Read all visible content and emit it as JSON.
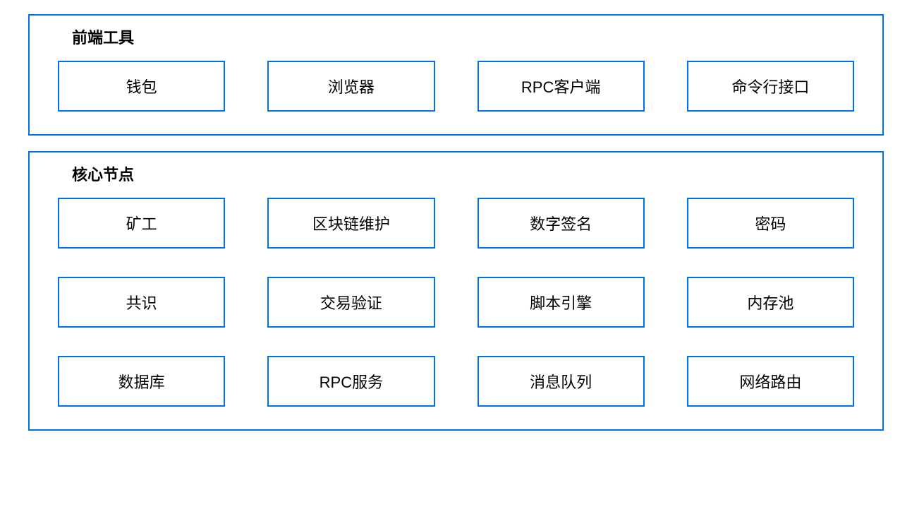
{
  "diagram": {
    "type": "block-diagram",
    "border_color": "#0070f2",
    "border_width": 2,
    "background_color": "#ffffff",
    "text_color": "#000000",
    "title_fontsize": 22,
    "box_fontsize": 22,
    "sections": [
      {
        "title": "前端工具",
        "rows": [
          [
            "钱包",
            "浏览器",
            "RPC客户端",
            "命令行接口"
          ]
        ]
      },
      {
        "title": "核心节点",
        "rows": [
          [
            "矿工",
            "区块链维护",
            "数字签名",
            "密码"
          ],
          [
            "共识",
            "交易验证",
            "脚本引擎",
            "内存池"
          ],
          [
            "数据库",
            "RPC服务",
            "消息队列",
            "网络路由"
          ]
        ]
      }
    ]
  }
}
